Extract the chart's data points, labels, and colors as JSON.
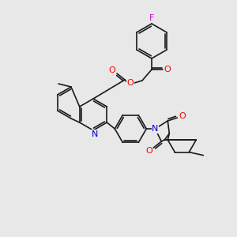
{
  "bg_color": "#e8e8e8",
  "bond_color": "#1a1a1a",
  "atom_colors": {
    "O": "#ff0000",
    "N": "#0000cc",
    "F": "#cc00cc"
  },
  "font_size": 7,
  "lw": 1.2
}
